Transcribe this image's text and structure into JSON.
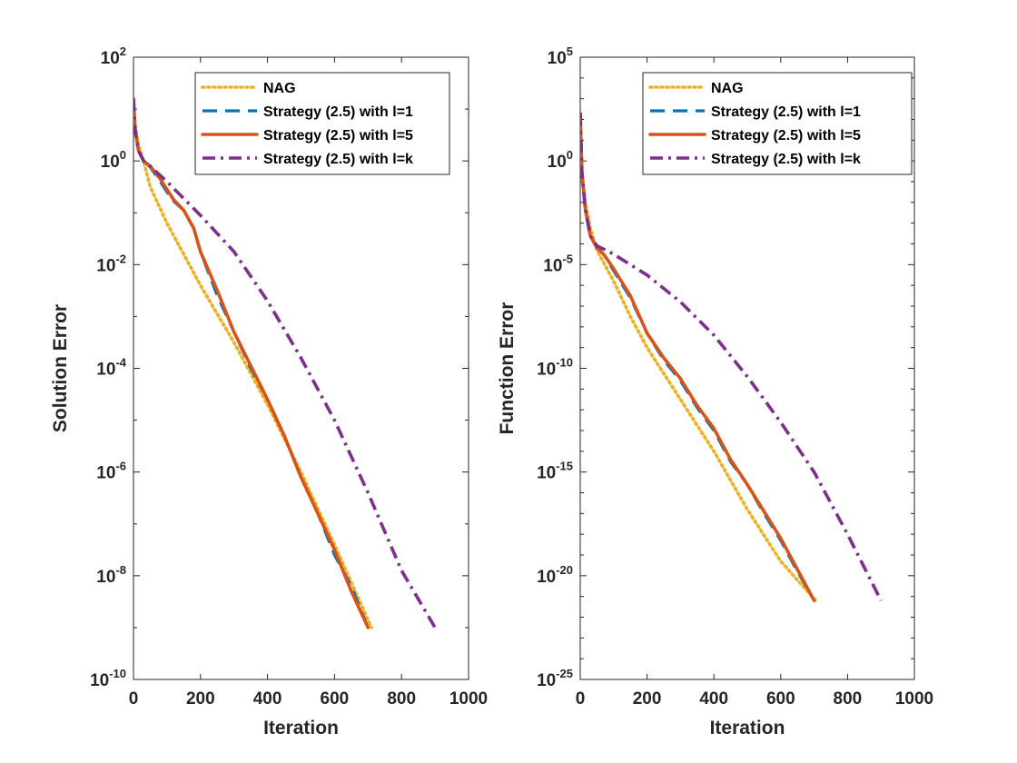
{
  "colors": {
    "nag": "#EDB120",
    "l1": "#0072BD",
    "l5": "#D95319",
    "lk": "#7E2F8E",
    "axis": "#262626"
  },
  "chart_data": [
    {
      "type": "line",
      "xlabel": "Iteration",
      "ylabel": "Solution Error",
      "xlim": [
        0,
        1000
      ],
      "ylim_log10": [
        -10,
        2
      ],
      "yscale": "log",
      "xticks": [
        0,
        200,
        400,
        600,
        800,
        1000
      ],
      "ytick_exponents": [
        -10,
        -8,
        -6,
        -4,
        -2,
        0,
        2
      ],
      "legend_position": "top-right",
      "series": [
        {
          "name": "NAG",
          "style": "dotted",
          "color_key": "nag",
          "x": [
            0,
            5,
            15,
            30,
            50,
            100,
            150,
            200,
            300,
            400,
            500,
            600,
            710
          ],
          "log10_y": [
            1.2,
            0.7,
            0.3,
            0.0,
            -0.5,
            -1.2,
            -1.8,
            -2.4,
            -3.5,
            -4.7,
            -6.0,
            -7.4,
            -9.0
          ]
        },
        {
          "name": "Strategy (2.5) with l=1",
          "style": "dashed",
          "color_key": "l1",
          "x": [
            0,
            5,
            15,
            30,
            50,
            80,
            100,
            120,
            150,
            180,
            200,
            250,
            300,
            350,
            400,
            450,
            500,
            550,
            600,
            650,
            700
          ],
          "log10_y": [
            1.2,
            0.6,
            0.2,
            0.0,
            -0.12,
            -0.4,
            -0.6,
            -0.78,
            -0.95,
            -1.3,
            -1.75,
            -2.6,
            -3.3,
            -4.0,
            -4.6,
            -5.3,
            -6.1,
            -6.8,
            -7.6,
            -8.2,
            -9.0
          ]
        },
        {
          "name": "Strategy (2.5) with l=5",
          "style": "solid",
          "color_key": "l5",
          "x": [
            0,
            5,
            15,
            30,
            50,
            80,
            100,
            120,
            150,
            180,
            200,
            250,
            300,
            350,
            400,
            450,
            500,
            550,
            600,
            650,
            700
          ],
          "log10_y": [
            1.2,
            0.6,
            0.2,
            0.0,
            -0.1,
            -0.35,
            -0.55,
            -0.75,
            -0.95,
            -1.3,
            -1.75,
            -2.5,
            -3.3,
            -3.95,
            -4.6,
            -5.3,
            -6.1,
            -6.8,
            -7.5,
            -8.3,
            -9.0
          ]
        },
        {
          "name": "Strategy (2.5) with l=k",
          "style": "dashdot",
          "color_key": "lk",
          "x": [
            0,
            5,
            15,
            30,
            50,
            100,
            200,
            300,
            400,
            500,
            600,
            700,
            800,
            900
          ],
          "log10_y": [
            1.2,
            0.6,
            0.2,
            0.0,
            -0.1,
            -0.4,
            -1.05,
            -1.75,
            -2.7,
            -3.8,
            -5.0,
            -6.4,
            -7.9,
            -9.0
          ]
        }
      ]
    },
    {
      "type": "line",
      "xlabel": "Iteration",
      "ylabel": "Function Error",
      "xlim": [
        0,
        1000
      ],
      "ylim_log10": [
        -25,
        5
      ],
      "yscale": "log",
      "xticks": [
        0,
        200,
        400,
        600,
        800,
        1000
      ],
      "ytick_exponents": [
        -25,
        -20,
        -15,
        -10,
        -5,
        0,
        5
      ],
      "legend_position": "top-right",
      "series": [
        {
          "name": "NAG",
          "style": "dotted",
          "color_key": "nag",
          "x": [
            0,
            5,
            15,
            30,
            50,
            100,
            150,
            200,
            300,
            400,
            500,
            600,
            710
          ],
          "log10_y": [
            2.3,
            -0.5,
            -2.0,
            -3.2,
            -4.3,
            -5.8,
            -7.5,
            -9.0,
            -11.5,
            -14.0,
            -16.8,
            -19.3,
            -21.3
          ]
        },
        {
          "name": "Strategy (2.5) with l=1",
          "style": "dashed",
          "color_key": "l1",
          "x": [
            0,
            5,
            15,
            30,
            50,
            70,
            100,
            150,
            200,
            250,
            300,
            350,
            400,
            450,
            500,
            550,
            600,
            650,
            700
          ],
          "log10_y": [
            2.3,
            -0.5,
            -2.3,
            -3.6,
            -4.2,
            -4.5,
            -5.3,
            -6.6,
            -8.3,
            -9.6,
            -10.6,
            -11.9,
            -13.0,
            -14.5,
            -15.6,
            -17.0,
            -18.3,
            -19.8,
            -21.2
          ]
        },
        {
          "name": "Strategy (2.5) with l=5",
          "style": "solid",
          "color_key": "l5",
          "x": [
            0,
            5,
            15,
            30,
            50,
            70,
            100,
            150,
            200,
            250,
            300,
            350,
            400,
            450,
            500,
            550,
            600,
            650,
            700
          ],
          "log10_y": [
            2.3,
            -0.5,
            -2.3,
            -3.6,
            -4.2,
            -4.5,
            -5.2,
            -6.5,
            -8.3,
            -9.5,
            -10.5,
            -11.8,
            -12.9,
            -14.4,
            -15.6,
            -16.9,
            -18.2,
            -19.7,
            -21.2
          ]
        },
        {
          "name": "Strategy (2.5) with l=k",
          "style": "dashdot",
          "color_key": "lk",
          "x": [
            0,
            5,
            15,
            30,
            50,
            70,
            100,
            200,
            300,
            400,
            500,
            600,
            700,
            800,
            900
          ],
          "log10_y": [
            2.3,
            -0.5,
            -2.3,
            -3.6,
            -4.1,
            -4.25,
            -4.5,
            -5.5,
            -6.8,
            -8.4,
            -10.4,
            -12.6,
            -15.0,
            -18.0,
            -21.2
          ]
        }
      ]
    }
  ]
}
